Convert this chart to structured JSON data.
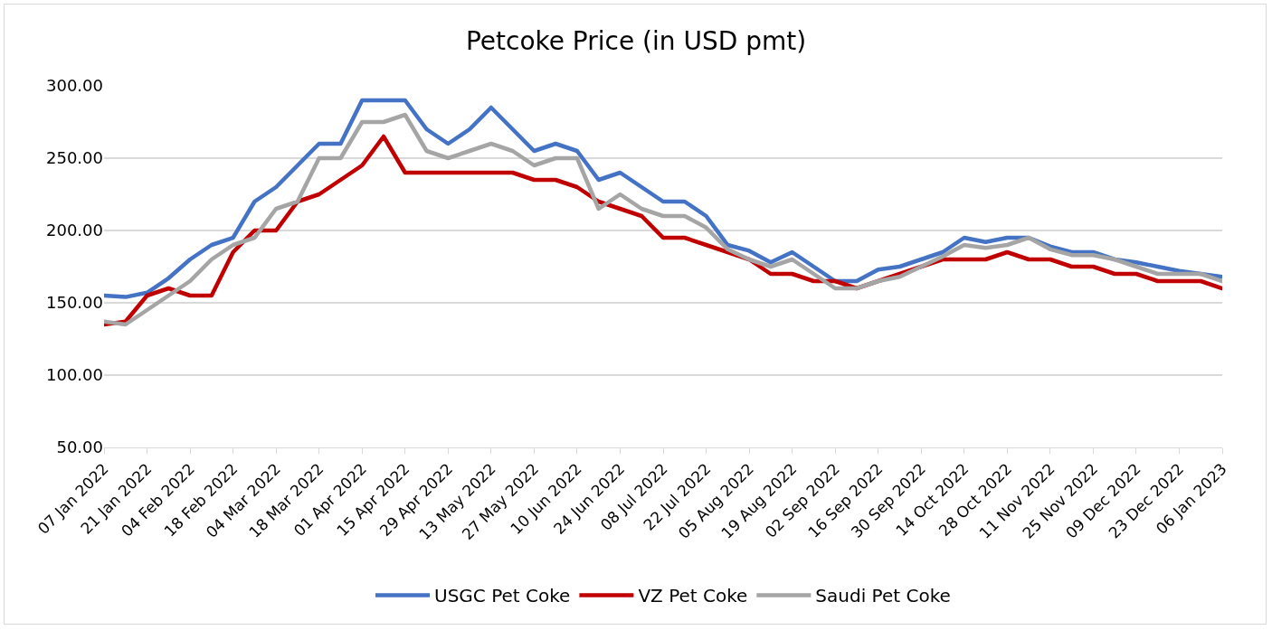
{
  "chart_data": {
    "type": "line",
    "title": "Petcoke Price (in USD pmt)",
    "x": [
      "2022-01-07",
      "2022-01-14",
      "2022-01-21",
      "2022-01-28",
      "2022-02-04",
      "2022-02-11",
      "2022-02-18",
      "2022-02-25",
      "2022-03-04",
      "2022-03-11",
      "2022-03-18",
      "2022-03-25",
      "2022-04-01",
      "2022-04-08",
      "2022-04-15",
      "2022-04-22",
      "2022-04-29",
      "2022-05-06",
      "2022-05-13",
      "2022-05-20",
      "2022-05-27",
      "2022-06-03",
      "2022-06-10",
      "2022-06-17",
      "2022-06-24",
      "2022-07-01",
      "2022-07-08",
      "2022-07-15",
      "2022-07-22",
      "2022-07-29",
      "2022-08-05",
      "2022-08-12",
      "2022-08-19",
      "2022-08-26",
      "2022-09-02",
      "2022-09-09",
      "2022-09-16",
      "2022-09-23",
      "2022-09-30",
      "2022-10-07",
      "2022-10-14",
      "2022-10-21",
      "2022-10-28",
      "2022-11-04",
      "2022-11-11",
      "2022-11-18",
      "2022-11-25",
      "2022-12-02",
      "2022-12-09",
      "2022-12-16",
      "2022-12-23",
      "2022-12-30",
      "2023-01-06"
    ],
    "series": [
      {
        "name": "USGC Pet Coke",
        "color": "#4472c4",
        "values": [
          155,
          154,
          157,
          167,
          180,
          190,
          195,
          220,
          230,
          245,
          260,
          260,
          290,
          290,
          290,
          270,
          260,
          270,
          285,
          270,
          255,
          260,
          255,
          235,
          240,
          230,
          220,
          220,
          210,
          190,
          186,
          178,
          185,
          175,
          165,
          165,
          173,
          175,
          180,
          185,
          195,
          192,
          195,
          195,
          189,
          185,
          185,
          180,
          178,
          175,
          172,
          170,
          168
        ]
      },
      {
        "name": "VZ Pet Coke",
        "color": "#c00000",
        "values": [
          135,
          137,
          155,
          160,
          155,
          155,
          185,
          200,
          200,
          220,
          225,
          235,
          245,
          265,
          240,
          240,
          240,
          240,
          240,
          240,
          235,
          235,
          230,
          220,
          215,
          210,
          195,
          195,
          190,
          185,
          180,
          170,
          170,
          165,
          165,
          160,
          165,
          170,
          175,
          180,
          180,
          180,
          185,
          180,
          180,
          175,
          175,
          170,
          170,
          165,
          165,
          165,
          160
        ]
      },
      {
        "name": "Saudi Pet Coke",
        "color": "#a5a5a5",
        "values": [
          137,
          135,
          145,
          155,
          165,
          180,
          190,
          195,
          215,
          220,
          250,
          250,
          275,
          275,
          280,
          255,
          250,
          255,
          260,
          255,
          245,
          250,
          250,
          215,
          225,
          215,
          210,
          210,
          202,
          187,
          180,
          175,
          180,
          170,
          160,
          160,
          165,
          168,
          175,
          182,
          190,
          188,
          190,
          195,
          187,
          183,
          183,
          180,
          175,
          170,
          170,
          170,
          165
        ]
      }
    ],
    "xlim": [
      "2022-01-07",
      "2023-01-06"
    ],
    "xticks": [
      {
        "value": "2022-01-07",
        "label": "07 Jan 2022"
      },
      {
        "value": "2022-01-21",
        "label": "21 Jan 2022"
      },
      {
        "value": "2022-02-04",
        "label": "04 Feb 2022"
      },
      {
        "value": "2022-02-18",
        "label": "18 Feb 2022"
      },
      {
        "value": "2022-03-04",
        "label": "04 Mar 2022"
      },
      {
        "value": "2022-03-18",
        "label": "18 Mar 2022"
      },
      {
        "value": "2022-04-01",
        "label": "01 Apr 2022"
      },
      {
        "value": "2022-04-15",
        "label": "15 Apr 2022"
      },
      {
        "value": "2022-04-29",
        "label": "29 Apr 2022"
      },
      {
        "value": "2022-05-13",
        "label": "13 May 2022"
      },
      {
        "value": "2022-05-27",
        "label": "27 May 2022"
      },
      {
        "value": "2022-06-10",
        "label": "10 Jun 2022"
      },
      {
        "value": "2022-06-24",
        "label": "24 Jun 2022"
      },
      {
        "value": "2022-07-08",
        "label": "08 Jul 2022"
      },
      {
        "value": "2022-07-22",
        "label": "22 Jul 2022"
      },
      {
        "value": "2022-08-05",
        "label": "05 Aug 2022"
      },
      {
        "value": "2022-08-19",
        "label": "19 Aug 2022"
      },
      {
        "value": "2022-09-02",
        "label": "02 Sep 2022"
      },
      {
        "value": "2022-09-16",
        "label": "16 Sep 2022"
      },
      {
        "value": "2022-09-30",
        "label": "30 Sep 2022"
      },
      {
        "value": "2022-10-14",
        "label": "14 Oct 2022"
      },
      {
        "value": "2022-10-28",
        "label": "28 Oct 2022"
      },
      {
        "value": "2022-11-11",
        "label": "11 Nov 2022"
      },
      {
        "value": "2022-11-25",
        "label": "25 Nov 2022"
      },
      {
        "value": "2022-12-09",
        "label": "09 Dec 2022"
      },
      {
        "value": "2022-12-23",
        "label": "23 Dec 2022"
      },
      {
        "value": "2023-01-06",
        "label": "06 Jan 2023"
      }
    ],
    "ylim": [
      50,
      300
    ],
    "yticks": [
      {
        "value": 50,
        "label": "50.00"
      },
      {
        "value": 100,
        "label": "100.00"
      },
      {
        "value": 150,
        "label": "150.00"
      },
      {
        "value": 200,
        "label": "200.00"
      },
      {
        "value": 250,
        "label": "250.00"
      },
      {
        "value": 300,
        "label": "300.00"
      }
    ],
    "grid": "y",
    "legend": "bottom",
    "marker": "none",
    "line_style": "solid"
  }
}
